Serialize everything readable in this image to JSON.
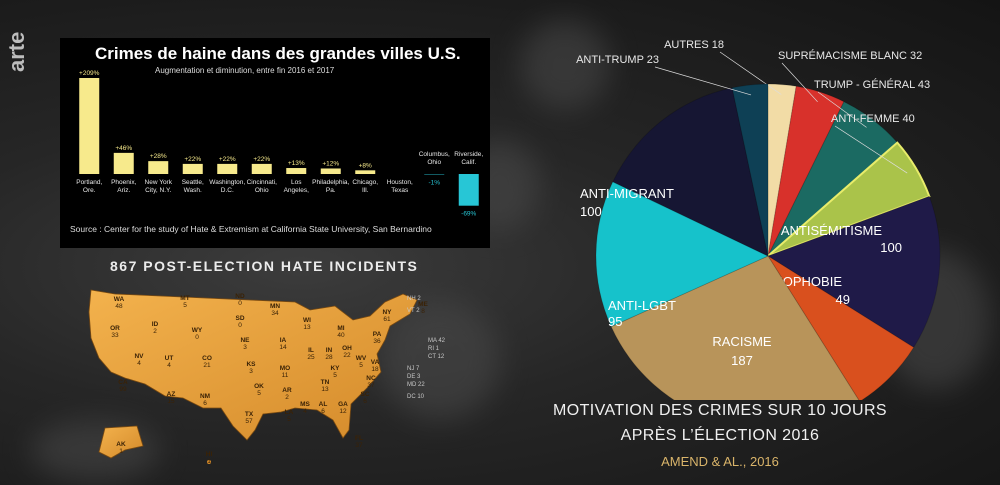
{
  "logo": {
    "text": "arte"
  },
  "chart_data": [
    {
      "type": "bar",
      "title": "Crimes de haine dans des grandes villes U.S.",
      "subtitle": "Augmentation et diminution, entre fin 2016 et 2017",
      "source": "Source : Center for the study of Hate & Extremism at California State University, San Bernardino",
      "categories": [
        [
          "Portland,",
          "Ore."
        ],
        [
          "Phoenix,",
          "Ariz."
        ],
        [
          "New York",
          "City, N.Y."
        ],
        [
          "Seattle,",
          "Wash."
        ],
        [
          "Washington,",
          "D.C."
        ],
        [
          "Cincinnati,",
          "Ohio"
        ],
        [
          "Los",
          "Angeles,"
        ],
        [
          "Philadelphia,",
          "Pa."
        ],
        [
          "Chicago,",
          "Ill."
        ],
        [
          "Houston,",
          "Texas"
        ],
        [
          "Columbus,",
          "Ohio"
        ],
        [
          "Riverside,",
          "Calif."
        ]
      ],
      "values": [
        209,
        46,
        28,
        22,
        22,
        22,
        13,
        12,
        8,
        0,
        -1,
        -69
      ],
      "value_labels": [
        "+209%",
        "+46%",
        "+28%",
        "+22%",
        "+22%",
        "+22%",
        "+13%",
        "+12%",
        "+8%",
        "",
        "-1%",
        "-69%"
      ],
      "colors": {
        "positive": "#f7ea8c",
        "negative": "#27c6d6"
      }
    },
    {
      "type": "pie",
      "title": "MOTIVATION DES CRIMES SUR 10 JOURS",
      "title_line2": "APRÈS L’ÉLECTION 2016",
      "credit": "AMEND & AL., 2016",
      "slices": [
        {
          "label": "AUTRES",
          "value": 18,
          "color": "#f2dca6",
          "inside": false
        },
        {
          "label": "SUPRÉMACISME BLANC",
          "value": 32,
          "color": "#d8312b",
          "inside": false
        },
        {
          "label": "TRUMP - GÉNÉRAL",
          "value": 43,
          "color": "#1b6a62",
          "inside": false
        },
        {
          "label": "ANTI-FEMME",
          "value": 40,
          "color": "#aac34a",
          "inside": false
        },
        {
          "label": "ANTISÉMITISME",
          "value": 100,
          "color": "#1f1a48",
          "inside": true
        },
        {
          "label": "ISLAMOPHOBIE",
          "value": 49,
          "color": "#d9501e",
          "inside": true
        },
        {
          "label": "RACISME",
          "value": 187,
          "color": "#b8945a",
          "inside": true
        },
        {
          "label": "ANTI-LGBT",
          "value": 95,
          "color": "#16c2cb",
          "inside": true
        },
        {
          "label": "ANTI-MIGRANT",
          "value": 100,
          "color": "#161633",
          "inside": true
        },
        {
          "label": "ANTI-TRUMP",
          "value": 23,
          "color": "#0e4055",
          "inside": false
        }
      ]
    }
  ],
  "map": {
    "heading": "867 POST-ELECTION HATE INCIDENTS",
    "states": [
      {
        "code": "WA",
        "n": "48"
      },
      {
        "code": "OR",
        "n": "33"
      },
      {
        "code": "ID",
        "n": "2"
      },
      {
        "code": "MT",
        "n": "5"
      },
      {
        "code": "WY",
        "n": "0"
      },
      {
        "code": "ND",
        "n": "0"
      },
      {
        "code": "SD",
        "n": "0"
      },
      {
        "code": "MN",
        "n": "34"
      },
      {
        "code": "WI",
        "n": "13"
      },
      {
        "code": "MI",
        "n": "40"
      },
      {
        "code": "NV",
        "n": "4"
      },
      {
        "code": "UT",
        "n": "4"
      },
      {
        "code": "CO",
        "n": "21"
      },
      {
        "code": "NE",
        "n": "3"
      },
      {
        "code": "IA",
        "n": "14"
      },
      {
        "code": "IL",
        "n": "25"
      },
      {
        "code": "IN",
        "n": "28"
      },
      {
        "code": "OH",
        "n": "22"
      },
      {
        "code": "PA",
        "n": "36"
      },
      {
        "code": "NY",
        "n": "61"
      },
      {
        "code": "CA",
        "n": "99"
      },
      {
        "code": "AZ",
        "n": "15"
      },
      {
        "code": "NM",
        "n": "6"
      },
      {
        "code": "KS",
        "n": "3"
      },
      {
        "code": "MO",
        "n": "11"
      },
      {
        "code": "KY",
        "n": "5"
      },
      {
        "code": "WV",
        "n": "5"
      },
      {
        "code": "VA",
        "n": "18"
      },
      {
        "code": "OK",
        "n": "5"
      },
      {
        "code": "AR",
        "n": "2"
      },
      {
        "code": "TN",
        "n": "13"
      },
      {
        "code": "NC",
        "n": "37"
      },
      {
        "code": "TX",
        "n": "57"
      },
      {
        "code": "LA",
        "n": "5"
      },
      {
        "code": "MS",
        "n": "4"
      },
      {
        "code": "AL",
        "n": "6"
      },
      {
        "code": "GA",
        "n": "12"
      },
      {
        "code": "SC",
        "n": "6"
      },
      {
        "code": "FL",
        "n": "37"
      },
      {
        "code": "AK",
        "n": "1"
      },
      {
        "code": "HI",
        "n": "1"
      },
      {
        "code": "ME",
        "n": "8"
      }
    ],
    "callouts": [
      "NH 2",
      "VT 2",
      "MA 42",
      "RI 1",
      "CT 12",
      "NJ 7",
      "DE 3",
      "MD 22",
      "DC 10"
    ]
  }
}
